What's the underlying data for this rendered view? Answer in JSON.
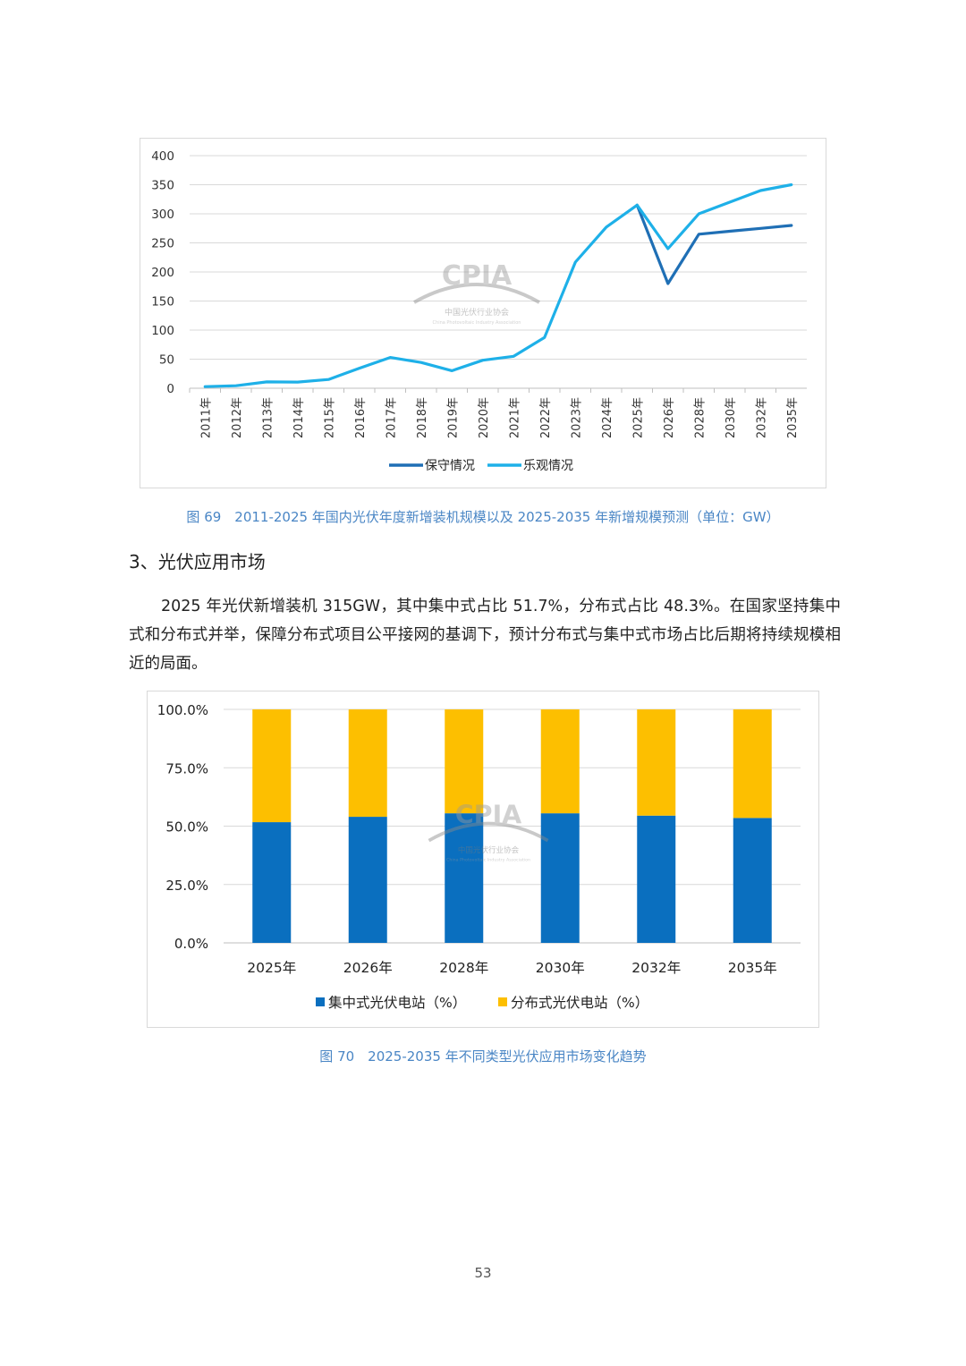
{
  "watermark": {
    "logo": "CPIA",
    "org_cn": "中国光伏行业协会",
    "org_en": "China Photovoltaic Industry Association"
  },
  "figure69": {
    "caption": "图 69　2011-2025 年国内光伏年度新增装机规模以及 2025-2035 年新增规模预测（单位：GW）"
  },
  "section": {
    "heading": "3、光伏应用市场",
    "paragraph": "2025 年光伏新增装机 315GW，其中集中式占比 51.7%，分布式占比 48.3%。在国家坚持集中式和分布式并举，保障分布式项目公平接网的基调下，预计分布式与集中式市场占比后期将持续规模相近的局面。"
  },
  "figure70": {
    "caption": "图 70　2025-2035 年不同类型光伏应用市场变化趋势"
  },
  "page_number": "53",
  "chart_data": [
    {
      "type": "line",
      "title": "",
      "xlabel": "",
      "ylabel": "",
      "categories": [
        "2011年",
        "2012年",
        "2013年",
        "2014年",
        "2015年",
        "2016年",
        "2017年",
        "2018年",
        "2019年",
        "2020年",
        "2021年",
        "2022年",
        "2023年",
        "2024年",
        "2025年",
        "2026年",
        "2028年",
        "2030年",
        "2032年",
        "2035年"
      ],
      "ylim": [
        0,
        400
      ],
      "yticks": [
        "0",
        "50",
        "100",
        "150",
        "200",
        "250",
        "300",
        "350",
        "400"
      ],
      "grid": true,
      "legend_position": "bottom",
      "series": [
        {
          "name": "保守情况",
          "color": "#1f6fb5",
          "values": [
            null,
            null,
            null,
            null,
            null,
            null,
            null,
            null,
            null,
            null,
            null,
            null,
            null,
            null,
            315,
            180,
            265,
            270,
            275,
            280
          ]
        },
        {
          "name": "乐观情况",
          "color": "#1eb0e8",
          "values": [
            2.7,
            4.3,
            10.9,
            10.6,
            15.1,
            34.5,
            53,
            44.3,
            30.1,
            48.2,
            54.9,
            87.4,
            216.9,
            277,
            315,
            240,
            300,
            320,
            340,
            350
          ]
        }
      ]
    },
    {
      "type": "bar",
      "stacked": true,
      "title": "",
      "xlabel": "",
      "ylabel": "",
      "categories": [
        "2025年",
        "2026年",
        "2028年",
        "2030年",
        "2032年",
        "2035年"
      ],
      "ylim": [
        0,
        100
      ],
      "yticks": [
        "0.0%",
        "25.0%",
        "50.0%",
        "75.0%",
        "100.0%"
      ],
      "grid": true,
      "legend_position": "bottom",
      "series": [
        {
          "name": "集中式光伏电站（%）",
          "color": "#0a6fbf",
          "values": [
            51.7,
            54,
            55.5,
            55.5,
            54.5,
            53.5
          ]
        },
        {
          "name": "分布式光伏电站（%）",
          "color": "#fdbf00",
          "values": [
            48.3,
            46,
            44.5,
            44.5,
            45.5,
            46.5
          ]
        }
      ]
    }
  ]
}
